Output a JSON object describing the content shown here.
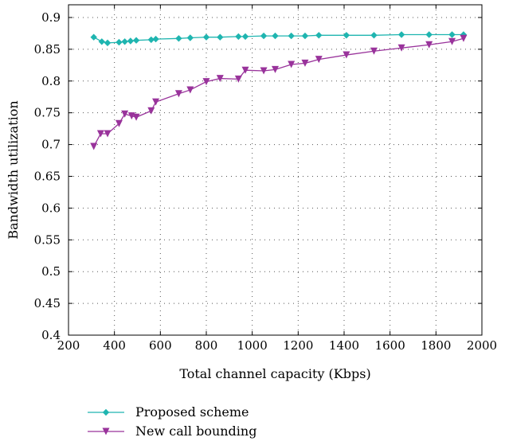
{
  "chart_data": {
    "type": "line",
    "title": "",
    "xlabel": "Total channel capacity (Kbps)",
    "ylabel": "Bandwidth utilization",
    "xlim": [
      200,
      2000
    ],
    "ylim": [
      0.4,
      0.92
    ],
    "xticks": [
      "200",
      "400",
      "600",
      "800",
      "1000",
      "1200",
      "1400",
      "1600",
      "1800",
      "2000"
    ],
    "yticks": [
      "0.4",
      "0.45",
      "0.5",
      "0.55",
      "0.6",
      "0.65",
      "0.7",
      "0.75",
      "0.8",
      "0.85",
      "0.9"
    ],
    "grid": true,
    "legend_position": "bottom",
    "series": [
      {
        "name": "Proposed scheme",
        "color": "#1fb5b0",
        "marker": "diamond",
        "x": [
          310,
          345,
          370,
          420,
          445,
          470,
          495,
          560,
          580,
          680,
          730,
          800,
          860,
          940,
          970,
          1050,
          1100,
          1170,
          1230,
          1290,
          1410,
          1530,
          1650,
          1770,
          1870,
          1920
        ],
        "y": [
          0.869,
          0.862,
          0.86,
          0.861,
          0.862,
          0.863,
          0.864,
          0.865,
          0.866,
          0.867,
          0.868,
          0.869,
          0.869,
          0.87,
          0.87,
          0.871,
          0.871,
          0.871,
          0.871,
          0.872,
          0.872,
          0.872,
          0.873,
          0.873,
          0.873,
          0.873
        ]
      },
      {
        "name": "New call bounding",
        "color": "#99339b",
        "marker": "triangle-down",
        "x": [
          310,
          340,
          370,
          420,
          445,
          475,
          495,
          560,
          580,
          680,
          730,
          800,
          860,
          940,
          970,
          1050,
          1100,
          1170,
          1230,
          1290,
          1410,
          1530,
          1650,
          1770,
          1870,
          1920
        ],
        "y": [
          0.697,
          0.717,
          0.717,
          0.733,
          0.748,
          0.745,
          0.743,
          0.753,
          0.767,
          0.78,
          0.786,
          0.799,
          0.804,
          0.803,
          0.817,
          0.816,
          0.818,
          0.826,
          0.828,
          0.834,
          0.841,
          0.847,
          0.852,
          0.857,
          0.862,
          0.867
        ]
      }
    ]
  }
}
